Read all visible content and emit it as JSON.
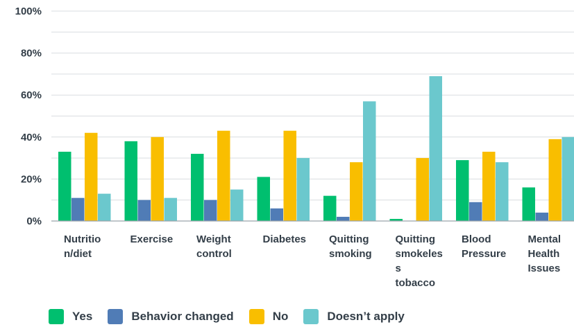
{
  "chart_data": {
    "type": "bar",
    "categories": [
      [
        "Nutritio",
        "n/diet"
      ],
      [
        "Exercise"
      ],
      [
        "Weight",
        "control"
      ],
      [
        "Diabetes"
      ],
      [
        "Quitting",
        "smoking"
      ],
      [
        "Quitting",
        "smokeles",
        "s",
        "tobacco"
      ],
      [
        "Blood",
        "Pressure"
      ],
      [
        "Mental",
        "Health",
        "Issues"
      ]
    ],
    "series": [
      {
        "name": "Yes",
        "color": "#00bf6f",
        "values": [
          33,
          38,
          32,
          21,
          12,
          1,
          29,
          16
        ]
      },
      {
        "name": "Behavior changed",
        "color": "#507cb6",
        "values": [
          11,
          10,
          10,
          6,
          2,
          0,
          9,
          4
        ]
      },
      {
        "name": "No",
        "color": "#f9be00",
        "values": [
          42,
          40,
          43,
          43,
          28,
          30,
          33,
          39
        ]
      },
      {
        "name": "Doesn’t apply",
        "color": "#6bc8cd",
        "values": [
          13,
          11,
          15,
          30,
          57,
          69,
          28,
          40
        ]
      }
    ],
    "yticks": [
      "0%",
      "20%",
      "40%",
      "60%",
      "80%",
      "100%"
    ],
    "ylim": [
      0,
      100
    ],
    "grid": true,
    "legend_position": "bottom-left"
  }
}
